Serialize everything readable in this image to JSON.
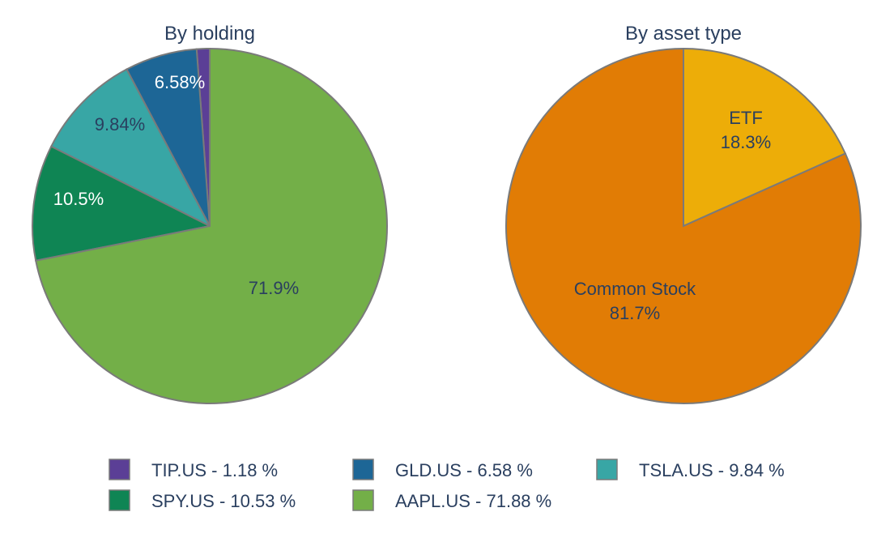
{
  "chart_data": [
    {
      "type": "pie",
      "title": "By holding",
      "slices": [
        {
          "name": "TIP.US",
          "value": 1.18,
          "label": "",
          "color": "#5b3f96"
        },
        {
          "name": "GLD.US",
          "value": 6.58,
          "label": "6.58%",
          "color": "#1d6696"
        },
        {
          "name": "TSLA.US",
          "value": 9.84,
          "label": "9.84%",
          "color": "#38a6a5"
        },
        {
          "name": "SPY.US",
          "value": 10.53,
          "label": "10.5%",
          "color": "#0f8554"
        },
        {
          "name": "AAPL.US",
          "value": 71.88,
          "label": "71.9%",
          "color": "#73af48"
        }
      ]
    },
    {
      "type": "pie",
      "title": "By asset type",
      "slices": [
        {
          "name": "ETF",
          "value": 18.3,
          "label": "ETF",
          "label2": "18.3%",
          "color": "#edad08"
        },
        {
          "name": "Common Stock",
          "value": 81.7,
          "label": "Common Stock",
          "label2": "81.7%",
          "color": "#e17c05"
        }
      ]
    }
  ],
  "legend": [
    {
      "text": "TIP.US - 1.18 %",
      "color": "#5b3f96"
    },
    {
      "text": "GLD.US - 6.58 %",
      "color": "#1d6696"
    },
    {
      "text": "TSLA.US - 9.84 %",
      "color": "#38a6a5"
    },
    {
      "text": "SPY.US - 10.53 %",
      "color": "#0f8554"
    },
    {
      "text": "AAPL.US - 71.88 %",
      "color": "#73af48"
    }
  ]
}
